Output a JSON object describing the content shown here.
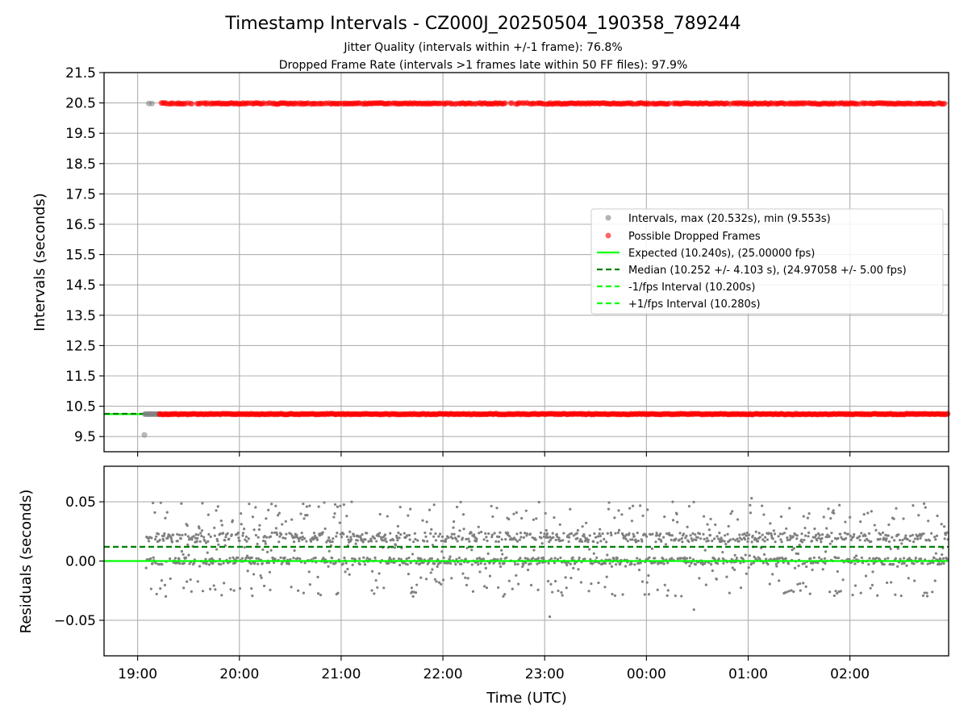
{
  "figure": {
    "title": "Timestamp Intervals - CZ000J_20250504_190358_789244",
    "subtitle_1": "Jitter Quality (intervals within +/-1 frame): 76.8%",
    "subtitle_2": "Dropped Frame Rate (intervals >1 frames late within 50 FF files): 97.9%",
    "colors": {
      "interval_points": "#808080",
      "dropped_points": "#ff0000",
      "expected_line": "#00ff00",
      "median_line": "#007f00",
      "fps_bounds": "#00ff00",
      "grid": "#b0b0b0"
    }
  },
  "chart_data": [
    {
      "type": "scatter",
      "title": "",
      "ylabel": "Intervals (seconds)",
      "xlabel": "",
      "ylim": [
        9.0,
        21.5
      ],
      "xlim_hours_utc": [
        18.67,
        26.97
      ],
      "grid": true,
      "x_ticks": [
        "19:00",
        "20:00",
        "21:00",
        "22:00",
        "23:00",
        "00:00",
        "01:00",
        "02:00"
      ],
      "y_ticks": [
        "9.5",
        "10.5",
        "11.5",
        "12.5",
        "13.5",
        "14.5",
        "15.5",
        "16.5",
        "17.5",
        "18.5",
        "19.5",
        "20.5",
        "21.5"
      ],
      "legend_position": "center-right",
      "series": [
        {
          "name": "Intervals, max (20.532s), min (9.553s)",
          "kind": "scatter",
          "color": "#808080",
          "description_levels": [
            10.24,
            20.48
          ],
          "min_point": {
            "x": "19:04",
            "y": 9.553
          }
        },
        {
          "name": "Possible Dropped Frames",
          "kind": "scatter",
          "color": "#ff0000",
          "levels": [
            10.24,
            20.48
          ],
          "x_start": "19:05",
          "x_end": "02:58"
        },
        {
          "name": "Expected (10.240s), (25.00000 fps)",
          "kind": "hline",
          "y": 10.24,
          "color": "#00ff00",
          "style": "solid"
        },
        {
          "name": "Median (10.252 +/- 4.103 s), (24.97058 +/- 5.00 fps)",
          "kind": "hline",
          "y": 10.252,
          "color": "#007f00",
          "style": "dashed"
        },
        {
          "name": "-1/fps Interval (10.200s)",
          "kind": "hline",
          "y": 10.2,
          "color": "#00ff00",
          "style": "dashed"
        },
        {
          "name": "+1/fps Interval (10.280s)",
          "kind": "hline",
          "y": 10.28,
          "color": "#00ff00",
          "style": "dashed"
        }
      ]
    },
    {
      "type": "scatter",
      "title": "",
      "ylabel": "Residuals (seconds)",
      "xlabel": "Time (UTC)",
      "ylim": [
        -0.08,
        0.08
      ],
      "xlim_hours_utc": [
        18.67,
        26.97
      ],
      "grid": true,
      "x_ticks": [
        "19:00",
        "20:00",
        "21:00",
        "22:00",
        "23:00",
        "00:00",
        "01:00",
        "02:00"
      ],
      "y_ticks": [
        "0.05",
        "0.00",
        "−0.05"
      ],
      "series": [
        {
          "kind": "scatter",
          "color": "#808080",
          "x_start": "19:05",
          "x_end": "02:58",
          "typical_range": [
            -0.03,
            0.05
          ],
          "outliers": [
            {
              "x": "23:03",
              "y": -0.047
            },
            {
              "x": "00:28",
              "y": -0.041
            },
            {
              "x": "01:02",
              "y": 0.053
            }
          ]
        },
        {
          "kind": "hline",
          "y": 0.0,
          "color": "#00ff00",
          "style": "solid"
        },
        {
          "kind": "hline",
          "y": 0.012,
          "color": "#007f00",
          "style": "dashed"
        }
      ]
    }
  ]
}
